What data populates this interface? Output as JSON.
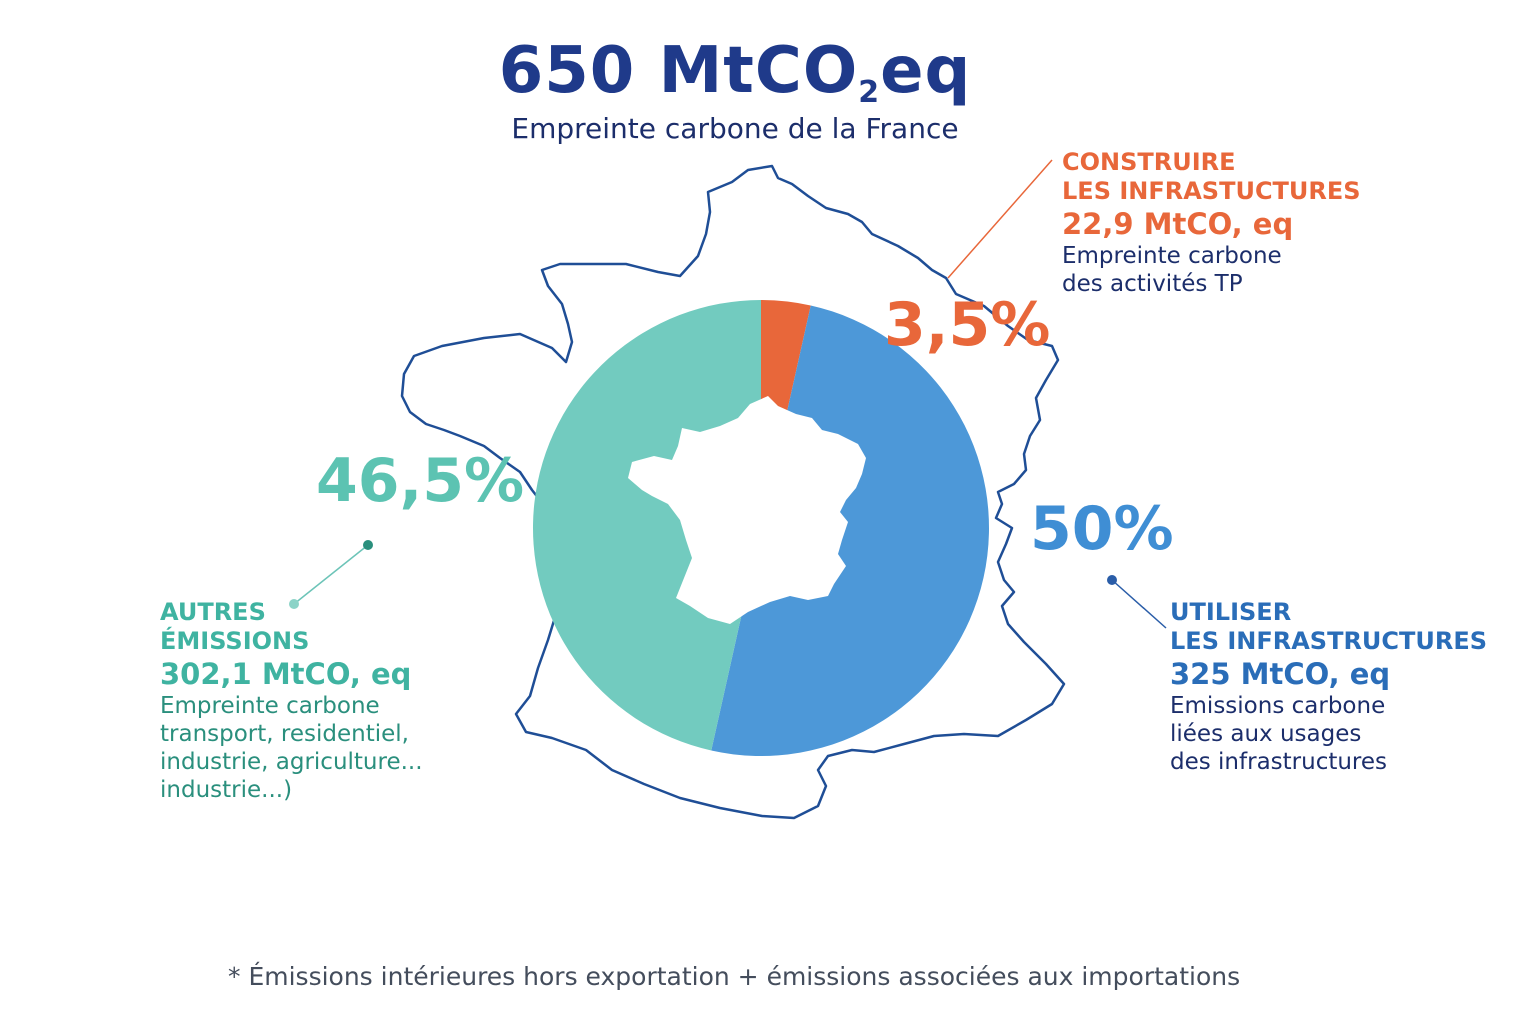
{
  "header": {
    "title_main": "650 MtCO",
    "title_sub": "2",
    "title_end": "eq",
    "subtitle": "Empreinte carbone de la France"
  },
  "colors": {
    "build": "#e8673a",
    "use": "#4d98d8",
    "other": "#72cbbf",
    "title": "#1f3a8a",
    "outline": "#1f4e96"
  },
  "segments": {
    "build": {
      "percent": "3,5%",
      "heading_1": "CONSTRUIRE",
      "heading_2": "LES INFRASTUCTURES",
      "value": "22,9 MtCO, eq",
      "desc_1": "Empreinte carbone",
      "desc_2": "des activités TP"
    },
    "use": {
      "percent": "50%",
      "heading_1": "UTILISER",
      "heading_2": "LES INFRASTRUCTURES",
      "value": "325 MtCO, eq",
      "desc_1": "Emissions carbone",
      "desc_2": "liées aux usages",
      "desc_3": "des infrastructures"
    },
    "other": {
      "percent": "46,5%",
      "heading_1": "AUTRES",
      "heading_2": "ÉMISSIONS",
      "value": "302,1 MtCO, eq",
      "desc_1": "Empreinte carbone",
      "desc_2": "transport, residentiel,",
      "desc_3": "industrie, agriculture...",
      "desc_4": "industrie...)"
    }
  },
  "footnote": "* Émissions intérieures hors exportation + émissions associées aux importations",
  "chart_data": {
    "type": "pie",
    "title": "650 MtCO2eq",
    "subtitle": "Empreinte carbone de la France",
    "categories": [
      "CONSTRUIRE LES INFRASTUCTURES",
      "UTILISER LES INFRASTRUCTURES",
      "AUTRES ÉMISSIONS"
    ],
    "values": [
      3.5,
      50,
      46.5
    ],
    "amounts_mtco2eq": [
      22.9,
      325,
      302.1
    ],
    "colors": [
      "#e8673a",
      "#4d98d8",
      "#72cbbf"
    ]
  }
}
